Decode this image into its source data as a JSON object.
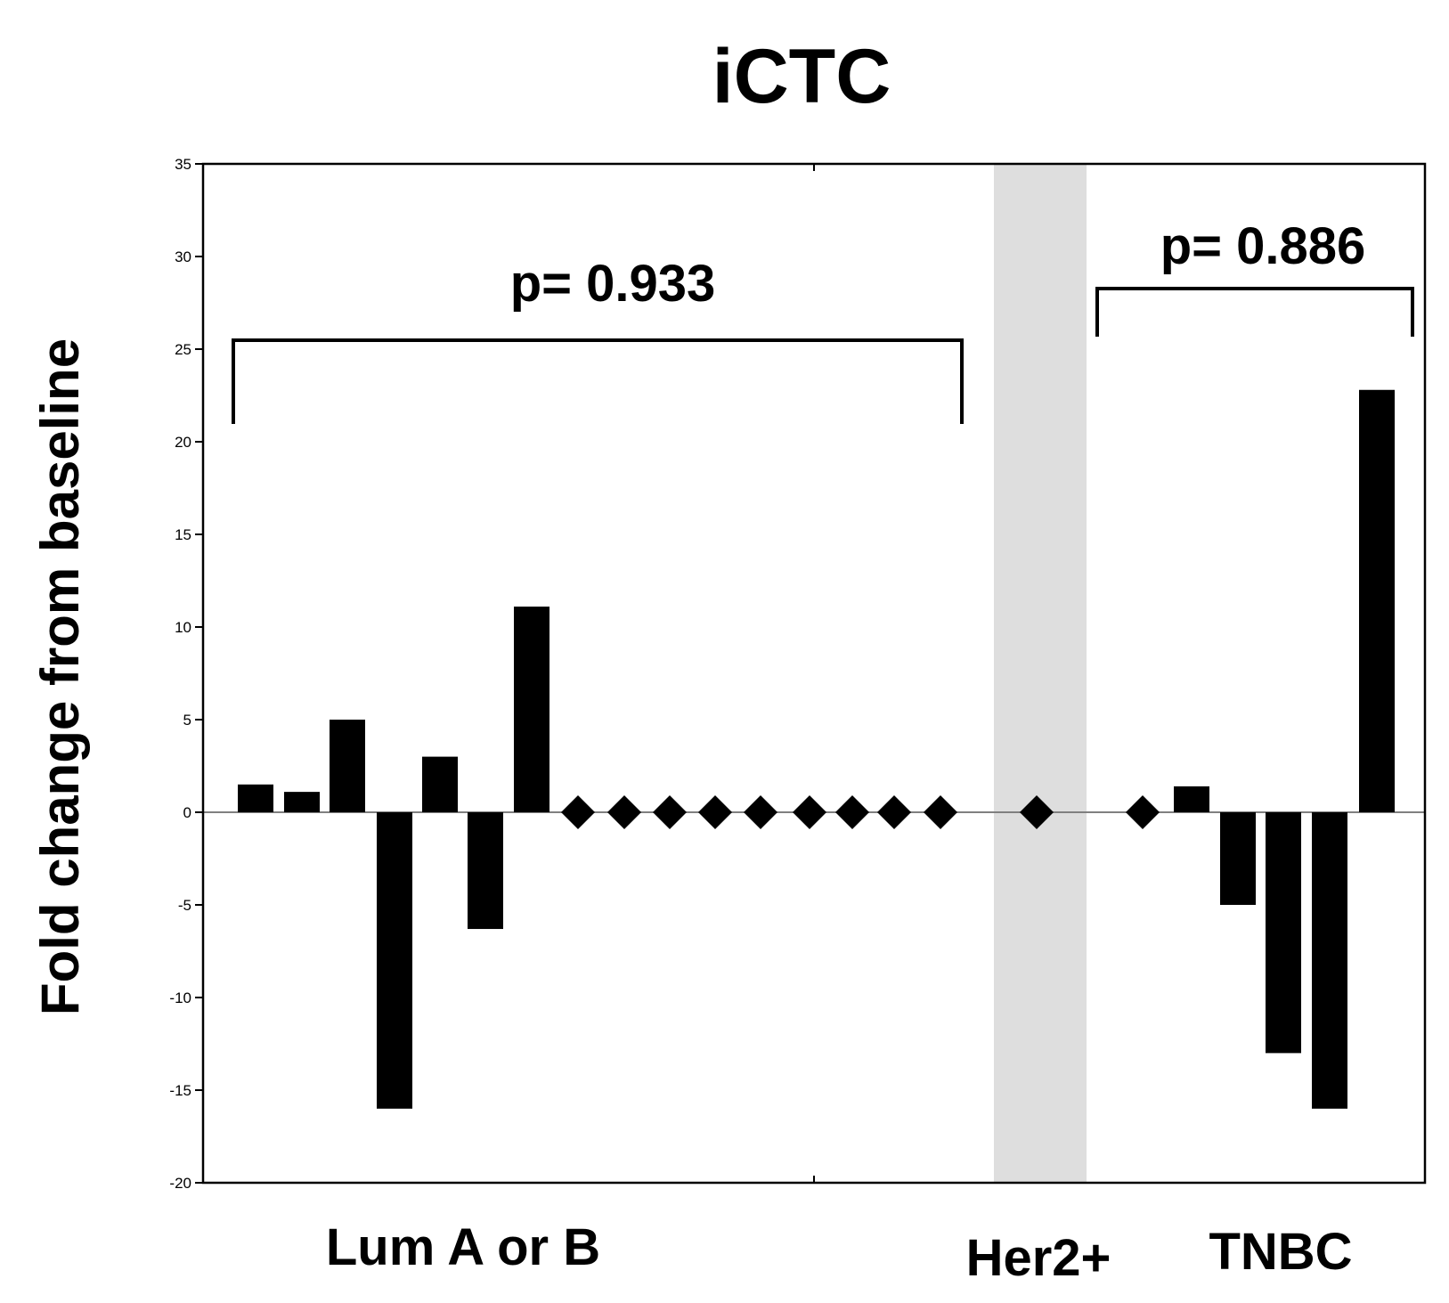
{
  "chart_data": {
    "type": "bar",
    "title": "iCTC",
    "ylabel": "Fold change from baseline",
    "xlabel": "",
    "ylim": [
      -20,
      35
    ],
    "yticks": [
      35,
      30,
      25,
      20,
      15,
      10,
      5,
      0,
      -5,
      -10,
      -15,
      -20
    ],
    "grid": false,
    "legend": "none",
    "colors": {
      "bar": "#000000",
      "highlight_band": "#dedede",
      "zero_line": "#808080"
    },
    "groups": [
      {
        "name": "Lum A or B",
        "p_value_label": "p= 0.933",
        "points": [
          {
            "kind": "bar",
            "value": 1.5
          },
          {
            "kind": "bar",
            "value": 1.1
          },
          {
            "kind": "bar",
            "value": 5
          },
          {
            "kind": "bar",
            "value": -16
          },
          {
            "kind": "bar",
            "value": 3
          },
          {
            "kind": "bar",
            "value": -6.3
          },
          {
            "kind": "bar",
            "value": 11.1
          },
          {
            "kind": "marker",
            "value": 0
          },
          {
            "kind": "marker",
            "value": 0
          },
          {
            "kind": "marker",
            "value": 0
          },
          {
            "kind": "marker",
            "value": 0
          },
          {
            "kind": "marker",
            "value": 0
          },
          {
            "kind": "marker",
            "value": 0
          },
          {
            "kind": "marker",
            "value": 0
          },
          {
            "kind": "marker",
            "value": 0
          },
          {
            "kind": "marker",
            "value": 0
          }
        ]
      },
      {
        "name": "Her2+",
        "p_value_label": "",
        "highlighted": true,
        "points": [
          {
            "kind": "marker",
            "value": 0
          }
        ]
      },
      {
        "name": "TNBC",
        "p_value_label": "p= 0.886",
        "points": [
          {
            "kind": "marker",
            "value": 0
          },
          {
            "kind": "bar",
            "value": 1.4
          },
          {
            "kind": "bar",
            "value": -5
          },
          {
            "kind": "bar",
            "value": -13
          },
          {
            "kind": "bar",
            "value": -16
          },
          {
            "kind": "bar",
            "value": 22.8
          }
        ]
      }
    ]
  }
}
